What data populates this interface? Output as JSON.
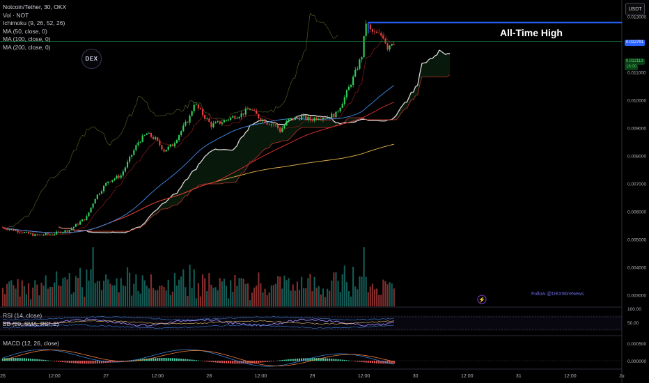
{
  "header": {
    "title": "Notcoin/Tether, 30, OKX",
    "indicators": [
      "Vol · NOT",
      "Ichimoku (9, 26, 52, 26)",
      "MA (50, close, 0)",
      "MA (100, close, 0)",
      "MA (200, close, 0)"
    ],
    "currency_button": "USDT"
  },
  "annotations": {
    "ath_label": "All-Time High",
    "follow_text": "Follow @DEXWireNews",
    "logo_text": "DEX"
  },
  "panes": {
    "rsi_label": "RSI (14, close)",
    "bb_label": "BB (20, SMA, RSI, 2)",
    "macd_label": "MACD (12, 26, close)"
  },
  "price_tags": {
    "ath": "0.012791",
    "last_price": "0.012113",
    "countdown": "16:00"
  },
  "chart_data": {
    "type": "candlestick",
    "pair": "Notcoin/Tether",
    "timeframe": "30",
    "exchange": "OKX",
    "y_ticks": [
      "0.013000",
      "0.011000",
      "0.010000",
      "0.009000",
      "0.008000",
      "0.007000",
      "0.006000",
      "0.005000",
      "0.004000",
      "0.003000"
    ],
    "y_ticks_value": [
      0.013,
      0.011,
      0.01,
      0.009,
      0.008,
      0.007,
      0.006,
      0.005,
      0.004,
      0.003
    ],
    "y_range": [
      0.0026,
      0.0136
    ],
    "x_ticks": [
      "26",
      "12:00",
      "27",
      "12:00",
      "28",
      "12:00",
      "29",
      "12:00",
      "30",
      "12:00",
      "31",
      "12:00",
      "Ju"
    ],
    "x_ticks_hours": [
      0,
      12,
      24,
      36,
      48,
      60,
      72,
      84,
      96,
      108,
      120,
      132,
      144
    ],
    "ath_price": 0.012791,
    "last_price": 0.012113,
    "price_path": [
      [
        0,
        0.00545
      ],
      [
        4,
        0.0053
      ],
      [
        8,
        0.00515
      ],
      [
        12,
        0.0052
      ],
      [
        16,
        0.00535
      ],
      [
        20,
        0.0058
      ],
      [
        22,
        0.0065
      ],
      [
        25,
        0.0071
      ],
      [
        28,
        0.0073
      ],
      [
        30,
        0.0079
      ],
      [
        32,
        0.0085
      ],
      [
        34,
        0.0088
      ],
      [
        36,
        0.0086
      ],
      [
        38,
        0.0082
      ],
      [
        40,
        0.0084
      ],
      [
        42,
        0.0089
      ],
      [
        44,
        0.0094
      ],
      [
        45,
        0.0099
      ],
      [
        47,
        0.0095
      ],
      [
        49,
        0.0091
      ],
      [
        51,
        0.0092
      ],
      [
        54,
        0.0094
      ],
      [
        56,
        0.0095
      ],
      [
        58,
        0.0097
      ],
      [
        60,
        0.0094
      ],
      [
        62,
        0.0092
      ],
      [
        64,
        0.0091
      ],
      [
        65,
        0.0089
      ],
      [
        67,
        0.0093
      ],
      [
        70,
        0.0094
      ],
      [
        72,
        0.0093
      ],
      [
        74,
        0.0094
      ],
      [
        76,
        0.0094
      ],
      [
        78,
        0.0095
      ],
      [
        80,
        0.0101
      ],
      [
        82,
        0.0108
      ],
      [
        84,
        0.0116
      ],
      [
        85,
        0.0128
      ],
      [
        86,
        0.0125
      ],
      [
        87,
        0.0124
      ],
      [
        89,
        0.0123
      ],
      [
        90,
        0.0119
      ],
      [
        91,
        0.0121
      ]
    ],
    "rsi_ticks": [
      "100.00",
      "50.00"
    ],
    "macd_ticks": [
      "0.000500",
      "0.000000"
    ]
  }
}
